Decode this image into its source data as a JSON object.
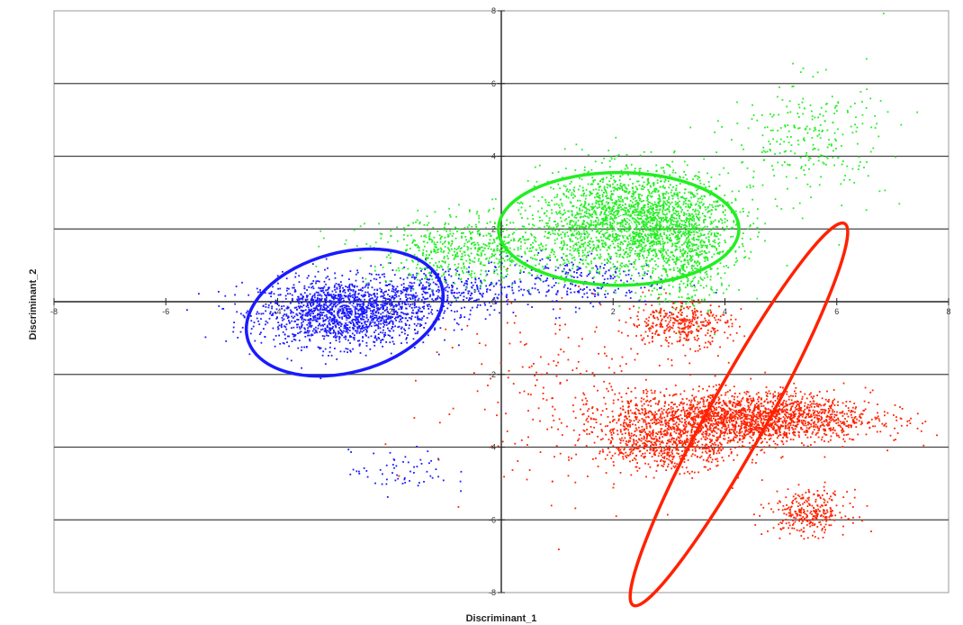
{
  "chart_data": {
    "type": "scatter",
    "title": "",
    "xlabel": "Discriminant_1",
    "ylabel": "Discriminant_2",
    "xlim": [
      -8,
      8
    ],
    "ylim": [
      -8,
      8
    ],
    "x_ticks": [
      -8,
      -6,
      -4,
      -2,
      0,
      2,
      4,
      6,
      8
    ],
    "y_ticks": [
      -8,
      -6,
      -4,
      -2,
      0,
      2,
      4,
      6,
      8
    ],
    "x_tick_labels": [
      "-8",
      "-6",
      "-4",
      "-2",
      "0",
      "2",
      "4",
      "6",
      "8"
    ],
    "y_tick_labels": [
      "-8",
      "-6",
      "-4",
      "-2",
      "0",
      "2",
      "4",
      "6",
      "8"
    ],
    "grid": "horizontal",
    "legend": "none",
    "series": [
      {
        "color": "#1a1aff",
        "centroid": [
          -2.8,
          -0.3
        ],
        "ellipse": {
          "center": [
            -2.8,
            -0.3
          ],
          "semi_axes": [
            1.8,
            1.65
          ],
          "rotation_deg": 15
        },
        "clusters": [
          {
            "center": [
              -2.8,
              -0.3
            ],
            "spread": [
              0.75,
              0.45
            ],
            "count": 1700
          },
          {
            "center": [
              -1.0,
              0.3
            ],
            "spread": [
              0.7,
              0.35
            ],
            "count": 350
          },
          {
            "center": [
              1.2,
              0.6
            ],
            "spread": [
              0.8,
              0.35
            ],
            "count": 250
          },
          {
            "center": [
              -1.8,
              -4.7
            ],
            "spread": [
              0.45,
              0.3
            ],
            "count": 60
          }
        ]
      },
      {
        "color": "#22ee22",
        "centroid": [
          2.2,
          2.1
        ],
        "ellipse": {
          "center": [
            2.1,
            2.0
          ],
          "semi_axes": [
            2.15,
            1.55
          ],
          "rotation_deg": 0
        },
        "clusters": [
          {
            "center": [
              2.4,
              2.2
            ],
            "spread": [
              0.85,
              0.7
            ],
            "count": 2300
          },
          {
            "center": [
              -0.5,
              1.4
            ],
            "spread": [
              0.9,
              0.45
            ],
            "count": 650
          },
          {
            "center": [
              3.3,
              1.2
            ],
            "spread": [
              0.35,
              0.75
            ],
            "count": 400
          },
          {
            "center": [
              5.5,
              4.5
            ],
            "spread": [
              0.7,
              0.8
            ],
            "count": 260
          }
        ]
      },
      {
        "color": "#ff2200",
        "centroid": [
          4.2,
          -2.7
        ],
        "ellipse": {
          "center": [
            4.25,
            -3.1
          ],
          "semi_axes": [
            3.9,
            0.8
          ],
          "rotation_deg": 61
        },
        "clusters": [
          {
            "center": [
              4.3,
              -3.2
            ],
            "spread": [
              1.15,
              0.35
            ],
            "count": 2200
          },
          {
            "center": [
              5.5,
              -5.8
            ],
            "spread": [
              0.35,
              0.3
            ],
            "count": 300
          },
          {
            "center": [
              3.0,
              -4.0
            ],
            "spread": [
              0.65,
              0.3
            ],
            "count": 550
          },
          {
            "center": [
              3.2,
              -0.6
            ],
            "spread": [
              0.45,
              0.3
            ],
            "count": 350
          },
          {
            "center": [
              1.5,
              -2.5
            ],
            "spread": [
              1.4,
              1.3
            ],
            "count": 250
          }
        ]
      }
    ]
  }
}
